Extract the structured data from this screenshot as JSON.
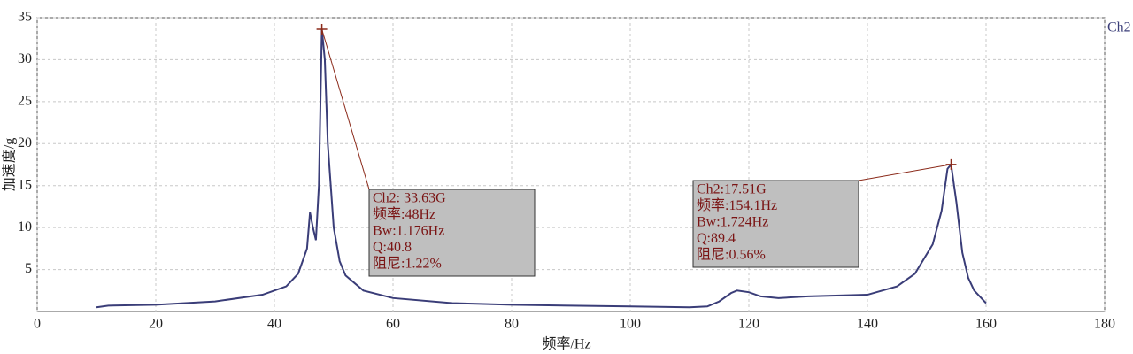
{
  "chart_data": {
    "type": "line",
    "xlabel": "频率/Hz",
    "ylabel": "加速度/g",
    "xlim": [
      0,
      180
    ],
    "xticks": [
      0,
      20,
      40,
      60,
      80,
      100,
      120,
      140,
      160,
      180
    ],
    "ylim": [
      0,
      35
    ],
    "yticks": [
      5,
      10,
      15,
      20,
      25,
      30,
      35
    ],
    "grid": true,
    "x": [
      10,
      12,
      20,
      30,
      38,
      42,
      44,
      45.5,
      46,
      46.5,
      47,
      47.5,
      48,
      48.5,
      49,
      50,
      51,
      52,
      55,
      60,
      70,
      80,
      90,
      100,
      110,
      113,
      115,
      117,
      118,
      120,
      122,
      125,
      130,
      140,
      145,
      148,
      151,
      152.5,
      153.5,
      154.1,
      155,
      156,
      157,
      158,
      160
    ],
    "series": [
      {
        "name": "Ch2",
        "color": "#3a3d78",
        "values": [
          0.5,
          0.7,
          0.8,
          1.2,
          2.0,
          3.0,
          4.5,
          7.5,
          11.8,
          10,
          8.5,
          15,
          33.63,
          30,
          20,
          10,
          6,
          4.3,
          2.5,
          1.6,
          1.0,
          0.8,
          0.7,
          0.6,
          0.5,
          0.6,
          1.2,
          2.2,
          2.5,
          2.3,
          1.8,
          1.6,
          1.8,
          2.0,
          3.0,
          4.5,
          8,
          12,
          17,
          17.51,
          13,
          7,
          4,
          2.5,
          1.0
        ]
      }
    ],
    "annotations": [
      {
        "x": 48,
        "y": 33.63,
        "lines": [
          "Ch2: 33.63G",
          "频率:48Hz",
          "Bw:1.176Hz",
          "Q:40.8",
          "阻尼:1.22%"
        ]
      },
      {
        "x": 154.1,
        "y": 17.51,
        "lines": [
          "Ch2:17.51G",
          "频率:154.1Hz",
          "Bw:1.724Hz",
          "Q:89.4",
          "阻尼:0.56%"
        ]
      }
    ]
  }
}
